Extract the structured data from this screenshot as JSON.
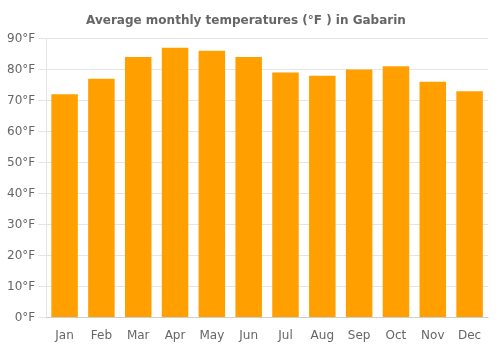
{
  "chart_data": {
    "type": "bar",
    "title": "Average monthly temperatures (°F ) in Gabarin",
    "categories": [
      "Jan",
      "Feb",
      "Mar",
      "Apr",
      "May",
      "Jun",
      "Jul",
      "Aug",
      "Sep",
      "Oct",
      "Nov",
      "Dec"
    ],
    "values": [
      72,
      77,
      84,
      87,
      86,
      84,
      79,
      78,
      80,
      81,
      76,
      73
    ],
    "color": "#FFA000",
    "ylim": [
      0,
      90
    ],
    "yticks": [
      {
        "value": 0,
        "label": "0°F"
      },
      {
        "value": 10,
        "label": "10°F"
      },
      {
        "value": 20,
        "label": "20°F"
      },
      {
        "value": 30,
        "label": "30°F"
      },
      {
        "value": 40,
        "label": "40°F"
      },
      {
        "value": 50,
        "label": "50°F"
      },
      {
        "value": 60,
        "label": "60°F"
      },
      {
        "value": 70,
        "label": "70°F"
      },
      {
        "value": 80,
        "label": "80°F"
      },
      {
        "value": 90,
        "label": "90°F"
      }
    ],
    "grid": true
  }
}
